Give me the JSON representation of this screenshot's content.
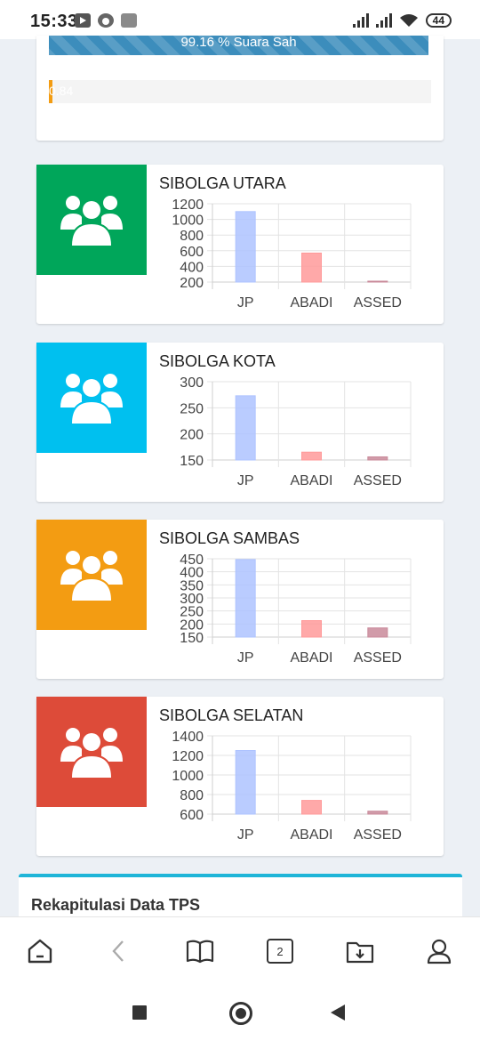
{
  "status_bar": {
    "time": "15:33",
    "battery": "44"
  },
  "summary": {
    "valid_votes_label": "99.16 % Suara Sah",
    "small_bar_label": "0.84"
  },
  "districts": [
    {
      "title": "SIBOLGA UTARA",
      "color": "#00a65a",
      "chart_data": {
        "type": "bar",
        "categories": [
          "JP",
          "ABADI",
          "ASSED"
        ],
        "values": [
          1100,
          570,
          200
        ],
        "ylim": [
          200,
          1200
        ],
        "yticks": [
          1200,
          1000,
          800,
          600,
          400,
          200
        ]
      }
    },
    {
      "title": "SIBOLGA KOTA",
      "color": "#00c0ef",
      "chart_data": {
        "type": "bar",
        "categories": [
          "JP",
          "ABADI",
          "ASSED"
        ],
        "values": [
          273,
          165,
          156
        ],
        "ylim": [
          150,
          300
        ],
        "yticks": [
          300,
          250,
          200,
          150
        ]
      }
    },
    {
      "title": "SIBOLGA SAMBAS",
      "color": "#f39c12",
      "chart_data": {
        "type": "bar",
        "categories": [
          "JP",
          "ABADI",
          "ASSED"
        ],
        "values": [
          447,
          213,
          185
        ],
        "ylim": [
          150,
          450
        ],
        "yticks": [
          450,
          400,
          350,
          300,
          250,
          200,
          150
        ]
      }
    },
    {
      "title": "SIBOLGA SELATAN",
      "color": "#dd4b39",
      "chart_data": {
        "type": "bar",
        "categories": [
          "JP",
          "ABADI",
          "ASSED"
        ],
        "values": [
          1250,
          740,
          630
        ],
        "ylim": [
          600,
          1400
        ],
        "yticks": [
          1400,
          1200,
          1000,
          800,
          600
        ]
      }
    }
  ],
  "series_colors": [
    "#aec3ff",
    "#ff9a9a",
    "#c98a9a"
  ],
  "rekap": {
    "title": "Rekapitulasi Data TPS"
  },
  "toolbar": {
    "tab_count": "2"
  }
}
